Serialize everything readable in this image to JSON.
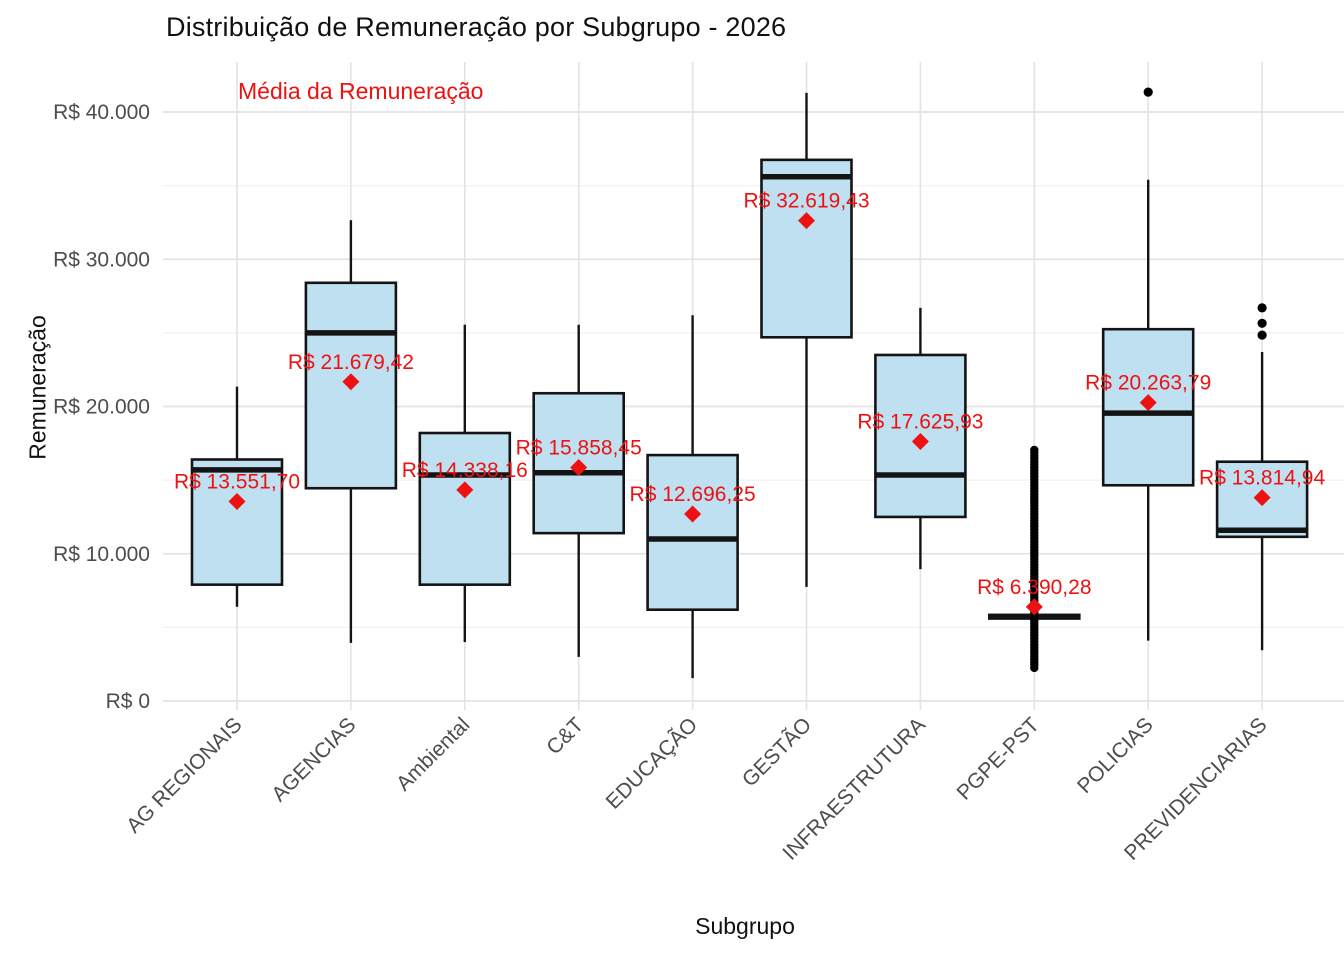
{
  "title": "Distribuição de Remuneração por Subgrupo - 2026",
  "annotation": "Média da Remuneração",
  "x_axis_title": "Subgrupo",
  "y_axis_title": "Remuneração",
  "colors": {
    "box_fill": "#bee0f1",
    "box_stroke": "#141414",
    "mean_accent": "#ee1111",
    "outlier": "#000000",
    "tick_label": "#4d4d4d",
    "grid_major": "#e3e3e3",
    "grid_minor": "#f1f1f1",
    "background": "#ffffff"
  },
  "y_ticks": [
    {
      "value": 0,
      "label": "R$ 0"
    },
    {
      "value": 10000,
      "label": "R$ 10.000"
    },
    {
      "value": 20000,
      "label": "R$ 20.000"
    },
    {
      "value": 30000,
      "label": "R$ 30.000"
    },
    {
      "value": 40000,
      "label": "R$ 40.000"
    }
  ],
  "y_minor_ticks": [
    5000,
    15000,
    25000,
    35000
  ],
  "chart_data": {
    "type": "boxplot",
    "title": "Distribuição de Remuneração por Subgrupo - 2026",
    "xlabel": "Subgrupo",
    "ylabel": "Remuneração",
    "ylim": [
      0,
      43500
    ],
    "grid": "major-and-minor, no axis lines",
    "legend_position": "none (red in-plot annotation: Média da Remuneração)",
    "categories": [
      "AG REGIONAIS",
      "AGENCIAS",
      "Ambiental",
      "C&T",
      "EDUCAÇÃO",
      "GESTÃO",
      "INFRAESTRUTURA",
      "PGPE-PST",
      "POLICIAS",
      "PREVIDENCIARIAS"
    ],
    "series": [
      {
        "category": "AG REGIONAIS",
        "whisker_low": 6400,
        "q1": 7900,
        "median": 15700,
        "q3": 16400,
        "whisker_high": 21350,
        "mean": 13551.7,
        "mean_label": "R$ 13.551,70",
        "outliers": []
      },
      {
        "category": "AGENCIAS",
        "whisker_low": 3950,
        "q1": 14450,
        "median": 25000,
        "q3": 28400,
        "whisker_high": 32650,
        "mean": 21679.42,
        "mean_label": "R$ 21.679,42",
        "outliers": []
      },
      {
        "category": "Ambiental",
        "whisker_low": 4000,
        "q1": 7900,
        "median": 15350,
        "q3": 18200,
        "whisker_high": 25550,
        "mean": 14338.16,
        "mean_label": "R$ 14.338,16",
        "outliers": []
      },
      {
        "category": "C&T",
        "whisker_low": 3000,
        "q1": 11400,
        "median": 15500,
        "q3": 20900,
        "whisker_high": 25550,
        "mean": 15858.45,
        "mean_label": "R$ 15.858,45",
        "outliers": []
      },
      {
        "category": "EDUCAÇÃO",
        "whisker_low": 1550,
        "q1": 6200,
        "median": 11000,
        "q3": 16700,
        "whisker_high": 26200,
        "mean": 12696.25,
        "mean_label": "R$ 12.696,25",
        "outliers": []
      },
      {
        "category": "GESTÃO",
        "whisker_low": 7750,
        "q1": 24700,
        "median": 35600,
        "q3": 36750,
        "whisker_high": 41300,
        "mean": 32619.43,
        "mean_label": "R$ 32.619,43",
        "outliers": []
      },
      {
        "category": "INFRAESTRUTURA",
        "whisker_low": 8950,
        "q1": 12500,
        "median": 15350,
        "q3": 23500,
        "whisker_high": 26700,
        "mean": 17625.93,
        "mean_label": "R$ 17.625,93",
        "outliers": []
      },
      {
        "category": "PGPE-PST",
        "whisker_low": 5450,
        "q1": 5600,
        "median": 5725,
        "q3": 5850,
        "whisker_high": 6000,
        "mean": 6390.28,
        "mean_label": "R$ 6.390,28",
        "outliers": [],
        "outliers_dense": {
          "min": 2250,
          "max": 17050,
          "step": 200
        }
      },
      {
        "category": "POLICIAS",
        "whisker_low": 4100,
        "q1": 14650,
        "median": 19550,
        "q3": 25250,
        "whisker_high": 35400,
        "mean": 20263.79,
        "mean_label": "R$ 20.263,79",
        "outliers": [
          41350
        ]
      },
      {
        "category": "PREVIDENCIARIAS",
        "whisker_low": 3450,
        "q1": 11150,
        "median": 11600,
        "q3": 16250,
        "whisker_high": 23700,
        "mean": 13814.94,
        "mean_label": "R$ 13.814,94",
        "outliers": [
          24850,
          25650,
          26700
        ]
      }
    ]
  }
}
